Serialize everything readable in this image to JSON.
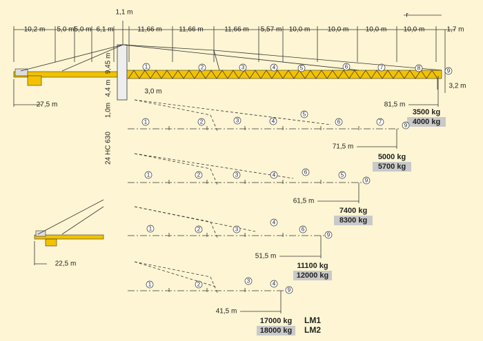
{
  "top_dimensions": {
    "mast_width": "1,1 m",
    "radius_symbol": "r",
    "segments": [
      "10,2 m",
      "5,0 m",
      "5,0 m",
      "6,1 m",
      "11,66 m",
      "11,66 m",
      "11,66 m",
      "5,57 m",
      "10,0 m",
      "10,0 m",
      "10,0 m",
      "10,0 m",
      "1,7 m"
    ]
  },
  "mast": {
    "model": "24 HC 630",
    "dims": [
      "9,45 m",
      "4,4 m",
      "1,0m"
    ]
  },
  "counter_jib": {
    "length": "27,5 m",
    "offset": "3,0 m"
  },
  "hook_height": "3,2 m",
  "configurations": [
    {
      "sections": [
        "1",
        "2",
        "3",
        "4",
        "5",
        "6",
        "7",
        "8",
        "9"
      ],
      "radius": "81,5 m",
      "loads": [
        "3500 kg",
        "4000 kg"
      ]
    },
    {
      "sections": [
        "1",
        "2",
        "3",
        "4",
        "5",
        "6",
        "7",
        "9"
      ],
      "radius": "71,5 m",
      "loads": [
        "5000 kg",
        "5700 kg"
      ]
    },
    {
      "sections": [
        "1",
        "2",
        "3",
        "4",
        "6",
        "5",
        "9"
      ],
      "radius": "61,5 m",
      "loads": [
        "7400 kg",
        "8300 kg"
      ]
    },
    {
      "sections": [
        "1",
        "2",
        "3",
        "4",
        "6",
        "9"
      ],
      "radius": "51,5 m",
      "loads": [
        "11100 kg",
        "12000 kg"
      ]
    },
    {
      "sections": [
        "1",
        "2",
        "3",
        "4",
        "9"
      ],
      "radius": "41,5 m",
      "loads": [
        "17000 kg",
        "18000 kg"
      ]
    }
  ],
  "small_counter_jib": "22,5 m",
  "legend": [
    "LM1",
    "LM2"
  ]
}
